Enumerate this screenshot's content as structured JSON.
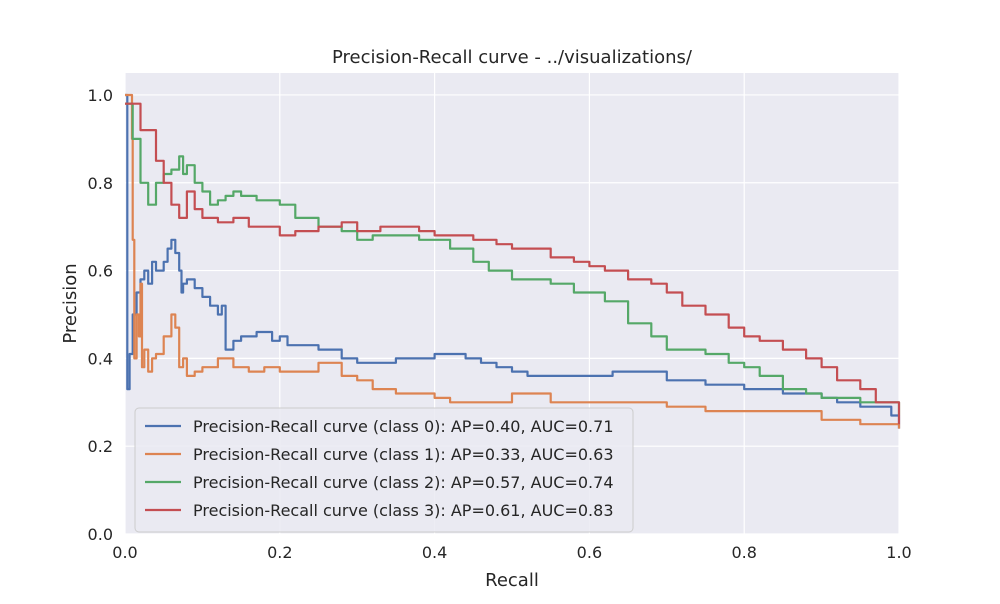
{
  "chart_data": {
    "type": "line",
    "title": "Precision-Recall curve - ../visualizations/",
    "xlabel": "Recall",
    "ylabel": "Precision",
    "xlim": [
      0,
      1
    ],
    "ylim": [
      0,
      1.05
    ],
    "xticks": [
      0.0,
      0.2,
      0.4,
      0.6,
      0.8,
      1.0
    ],
    "yticks": [
      0.0,
      0.2,
      0.4,
      0.6,
      0.8,
      1.0
    ],
    "xtick_labels": [
      "0.0",
      "0.2",
      "0.4",
      "0.6",
      "0.8",
      "1.0"
    ],
    "ytick_labels": [
      "0.0",
      "0.2",
      "0.4",
      "0.6",
      "0.8",
      "1.0"
    ],
    "grid": true,
    "background": "#eaeaf2",
    "legend_position": "lower-left",
    "series": [
      {
        "name": "Precision-Recall curve (class 0): AP=0.40, AUC=0.71",
        "color": "#4c72b0",
        "x": [
          0.0,
          0.003,
          0.006,
          0.01,
          0.015,
          0.02,
          0.025,
          0.03,
          0.035,
          0.04,
          0.05,
          0.055,
          0.06,
          0.065,
          0.07,
          0.073,
          0.075,
          0.08,
          0.09,
          0.1,
          0.11,
          0.12,
          0.125,
          0.13,
          0.14,
          0.15,
          0.17,
          0.19,
          0.2,
          0.21,
          0.22,
          0.25,
          0.28,
          0.3,
          0.32,
          0.35,
          0.4,
          0.42,
          0.44,
          0.46,
          0.48,
          0.5,
          0.52,
          0.55,
          0.6,
          0.63,
          0.66,
          0.7,
          0.75,
          0.8,
          0.85,
          0.88,
          0.9,
          0.92,
          0.95,
          0.97,
          0.99,
          1.0
        ],
        "y": [
          1.0,
          0.33,
          0.41,
          0.5,
          0.55,
          0.58,
          0.6,
          0.57,
          0.62,
          0.6,
          0.62,
          0.65,
          0.67,
          0.64,
          0.6,
          0.55,
          0.57,
          0.58,
          0.56,
          0.54,
          0.52,
          0.5,
          0.52,
          0.42,
          0.44,
          0.45,
          0.46,
          0.44,
          0.45,
          0.43,
          0.43,
          0.42,
          0.4,
          0.39,
          0.39,
          0.4,
          0.41,
          0.41,
          0.4,
          0.39,
          0.38,
          0.37,
          0.36,
          0.36,
          0.36,
          0.37,
          0.37,
          0.35,
          0.34,
          0.33,
          0.32,
          0.32,
          0.31,
          0.3,
          0.29,
          0.29,
          0.27,
          0.24
        ]
      },
      {
        "name": "Precision-Recall curve (class 1): AP=0.33, AUC=0.63",
        "color": "#dd8452",
        "x": [
          0.0,
          0.005,
          0.009,
          0.01,
          0.012,
          0.015,
          0.018,
          0.02,
          0.022,
          0.025,
          0.03,
          0.035,
          0.04,
          0.05,
          0.06,
          0.065,
          0.07,
          0.075,
          0.08,
          0.09,
          0.1,
          0.12,
          0.14,
          0.16,
          0.18,
          0.2,
          0.22,
          0.25,
          0.28,
          0.3,
          0.32,
          0.35,
          0.4,
          0.42,
          0.45,
          0.5,
          0.52,
          0.55,
          0.6,
          0.65,
          0.7,
          0.75,
          0.8,
          0.85,
          0.9,
          0.95,
          1.0
        ],
        "y": [
          1.0,
          1.0,
          0.9,
          0.67,
          0.4,
          0.5,
          0.45,
          0.57,
          0.38,
          0.42,
          0.37,
          0.4,
          0.41,
          0.45,
          0.5,
          0.47,
          0.38,
          0.4,
          0.36,
          0.37,
          0.38,
          0.4,
          0.38,
          0.37,
          0.38,
          0.37,
          0.37,
          0.39,
          0.36,
          0.35,
          0.33,
          0.32,
          0.31,
          0.3,
          0.3,
          0.32,
          0.32,
          0.3,
          0.3,
          0.3,
          0.29,
          0.28,
          0.28,
          0.28,
          0.26,
          0.25,
          0.24
        ]
      },
      {
        "name": "Precision-Recall curve (class 2): AP=0.57, AUC=0.74",
        "color": "#55a868",
        "x": [
          0.0,
          0.01,
          0.02,
          0.03,
          0.04,
          0.05,
          0.06,
          0.07,
          0.075,
          0.08,
          0.09,
          0.1,
          0.11,
          0.12,
          0.13,
          0.14,
          0.15,
          0.17,
          0.19,
          0.2,
          0.22,
          0.25,
          0.28,
          0.3,
          0.32,
          0.35,
          0.38,
          0.4,
          0.42,
          0.45,
          0.47,
          0.5,
          0.55,
          0.58,
          0.6,
          0.62,
          0.65,
          0.68,
          0.7,
          0.72,
          0.75,
          0.78,
          0.8,
          0.82,
          0.85,
          0.88,
          0.9,
          0.95,
          1.0
        ],
        "y": [
          0.98,
          0.9,
          0.8,
          0.75,
          0.8,
          0.82,
          0.83,
          0.86,
          0.82,
          0.84,
          0.8,
          0.78,
          0.75,
          0.76,
          0.77,
          0.78,
          0.77,
          0.76,
          0.76,
          0.75,
          0.72,
          0.7,
          0.69,
          0.67,
          0.68,
          0.68,
          0.67,
          0.67,
          0.65,
          0.62,
          0.6,
          0.58,
          0.57,
          0.55,
          0.55,
          0.53,
          0.48,
          0.45,
          0.42,
          0.42,
          0.41,
          0.39,
          0.38,
          0.36,
          0.33,
          0.32,
          0.31,
          0.3,
          0.27
        ]
      },
      {
        "name": "Precision-Recall curve (class 3): AP=0.61, AUC=0.83",
        "color": "#c44e52",
        "x": [
          0.0,
          0.02,
          0.04,
          0.05,
          0.06,
          0.07,
          0.08,
          0.09,
          0.1,
          0.12,
          0.14,
          0.16,
          0.18,
          0.2,
          0.22,
          0.25,
          0.28,
          0.3,
          0.33,
          0.35,
          0.38,
          0.4,
          0.42,
          0.45,
          0.48,
          0.5,
          0.52,
          0.55,
          0.58,
          0.6,
          0.62,
          0.65,
          0.68,
          0.7,
          0.72,
          0.75,
          0.78,
          0.8,
          0.82,
          0.85,
          0.88,
          0.9,
          0.92,
          0.95,
          0.97,
          1.0
        ],
        "y": [
          0.98,
          0.92,
          0.85,
          0.8,
          0.75,
          0.72,
          0.78,
          0.74,
          0.72,
          0.71,
          0.72,
          0.7,
          0.7,
          0.68,
          0.69,
          0.7,
          0.71,
          0.69,
          0.7,
          0.7,
          0.69,
          0.68,
          0.68,
          0.67,
          0.66,
          0.65,
          0.65,
          0.63,
          0.62,
          0.61,
          0.6,
          0.58,
          0.57,
          0.55,
          0.52,
          0.5,
          0.47,
          0.45,
          0.44,
          0.42,
          0.4,
          0.38,
          0.35,
          0.33,
          0.3,
          0.25
        ]
      }
    ]
  }
}
